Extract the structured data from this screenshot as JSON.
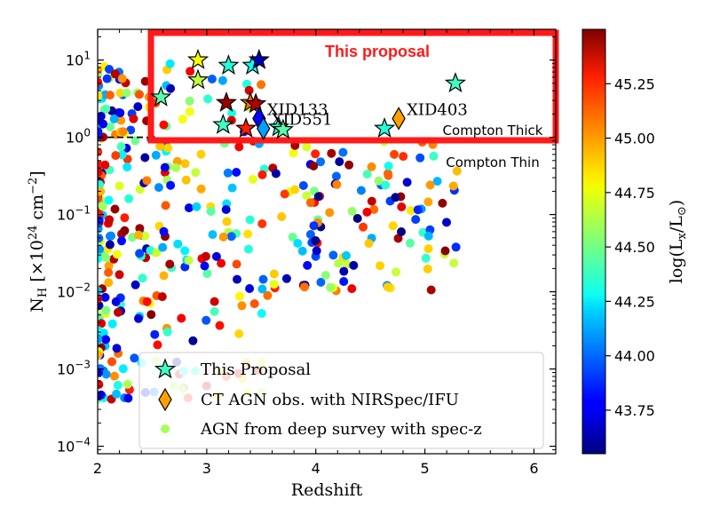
{
  "chart_data": {
    "type": "scatter",
    "xlabel": "Redshift",
    "ylabel": "N_H [×10^24 cm^-2]",
    "xlim": [
      2,
      6.2
    ],
    "ylim": [
      8e-05,
      25
    ],
    "yscale": "log",
    "x_ticks": [
      "2",
      "3",
      "4",
      "5",
      "6"
    ],
    "y_ticks": [
      "10^-4",
      "10^-3",
      "10^-2",
      "10^-1",
      "10^0",
      "10^1"
    ],
    "colorbar": {
      "label": "log(L_x/L_⊙)",
      "min": 43.55,
      "max": 45.5,
      "ticks": [
        "43.75",
        "44.00",
        "44.25",
        "44.50",
        "44.75",
        "45.00",
        "45.25"
      ],
      "colormap": "jet"
    },
    "legend": {
      "placement": "lower-right",
      "entries": [
        "This Proposal",
        "CT AGN obs. with NIRSpec/IFU",
        "AGN from deep survey with spec-z"
      ]
    },
    "annotations": {
      "proposal_box": "This proposal",
      "compton_thick": "Compton Thick",
      "compton_thin": "Compton Thin",
      "threshold_nh": 1.0
    },
    "series": [
      {
        "name": "This Proposal",
        "marker": "star",
        "points": [
          {
            "x": 2.58,
            "y": 3.3,
            "c": 44.45
          },
          {
            "x": 2.92,
            "y": 10.0,
            "c": 44.75
          },
          {
            "x": 2.92,
            "y": 5.5,
            "c": 44.65
          },
          {
            "x": 3.15,
            "y": 1.45,
            "c": 44.4
          },
          {
            "x": 3.18,
            "y": 2.8,
            "c": 45.45
          },
          {
            "x": 3.2,
            "y": 8.5,
            "c": 44.35
          },
          {
            "x": 3.36,
            "y": 1.3,
            "c": 45.2
          },
          {
            "x": 3.4,
            "y": 2.8,
            "c": 45.05
          },
          {
            "x": 3.42,
            "y": 8.5,
            "c": 44.3
          },
          {
            "x": 3.45,
            "y": 2.7,
            "c": 45.4
          },
          {
            "x": 3.48,
            "y": 10.0,
            "c": 43.65
          },
          {
            "x": 3.66,
            "y": 1.35,
            "c": 44.35
          },
          {
            "x": 3.7,
            "y": 1.25,
            "c": 44.45
          },
          {
            "x": 4.63,
            "y": 1.3,
            "c": 44.35
          },
          {
            "x": 5.28,
            "y": 5.0,
            "c": 44.4
          }
        ]
      },
      {
        "name": "CT AGN obs. with NIRSpec/IFU",
        "marker": "diamond",
        "points": [
          {
            "x": 3.48,
            "y": 1.75,
            "c": 43.8,
            "label": "XID133"
          },
          {
            "x": 3.52,
            "y": 1.3,
            "c": 44.1,
            "label": "XID551"
          },
          {
            "x": 4.76,
            "y": 1.75,
            "c": 44.95,
            "label": "XID403"
          }
        ]
      },
      {
        "name": "AGN from deep survey with spec-z",
        "marker": "circle",
        "count": 450,
        "x_range": [
          2.0,
          5.3
        ],
        "y_range": [
          0.0004,
          10
        ],
        "c_range": [
          43.55,
          45.5
        ]
      }
    ]
  }
}
